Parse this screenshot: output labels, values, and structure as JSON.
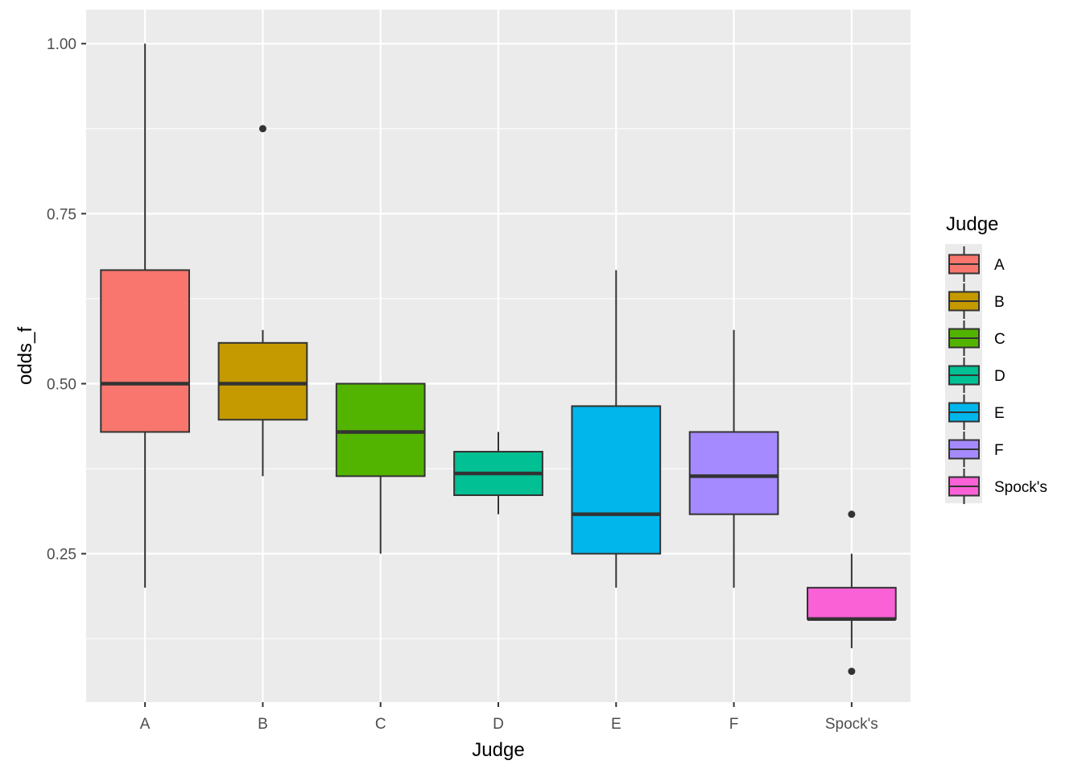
{
  "chart_data": {
    "type": "boxplot",
    "xlabel": "Judge",
    "ylabel": "odds_f",
    "ylim": [
      0.0317,
      1.05
    ],
    "y_ticks": [
      0.25,
      0.5,
      0.75,
      1.0
    ],
    "y_tick_labels": [
      "0.25",
      "0.50",
      "0.75",
      "1.00"
    ],
    "grid": true,
    "legend": {
      "title": "Judge",
      "placement": "right"
    },
    "categories": [
      "A",
      "B",
      "C",
      "D",
      "E",
      "F",
      "Spock's"
    ],
    "colors": [
      "#F8766D",
      "#C49A00",
      "#53B400",
      "#00C094",
      "#00B6EB",
      "#A58AFF",
      "#FB61D7"
    ],
    "boxes": [
      {
        "name": "A",
        "whisker_low": 0.2,
        "q1": 0.429,
        "median": 0.5,
        "q3": 0.667,
        "whisker_high": 1.0,
        "outliers": []
      },
      {
        "name": "B",
        "whisker_low": 0.364,
        "q1": 0.447,
        "median": 0.5,
        "q3": 0.56,
        "whisker_high": 0.579,
        "outliers": [
          0.875
        ]
      },
      {
        "name": "C",
        "whisker_low": 0.25,
        "q1": 0.364,
        "median": 0.429,
        "q3": 0.5,
        "whisker_high": 0.5,
        "outliers": []
      },
      {
        "name": "D",
        "whisker_low": 0.308,
        "q1": 0.336,
        "median": 0.368,
        "q3": 0.4,
        "whisker_high": 0.429,
        "outliers": []
      },
      {
        "name": "E",
        "whisker_low": 0.2,
        "q1": 0.25,
        "median": 0.308,
        "q3": 0.467,
        "whisker_high": 0.667,
        "outliers": []
      },
      {
        "name": "F",
        "whisker_low": 0.2,
        "q1": 0.308,
        "median": 0.364,
        "q3": 0.429,
        "whisker_high": 0.579,
        "outliers": []
      },
      {
        "name": "Spock's",
        "whisker_low": 0.111,
        "q1": 0.154,
        "median": 0.154,
        "q3": 0.2,
        "whisker_high": 0.25,
        "outliers": [
          0.308,
          0.077
        ]
      }
    ]
  }
}
